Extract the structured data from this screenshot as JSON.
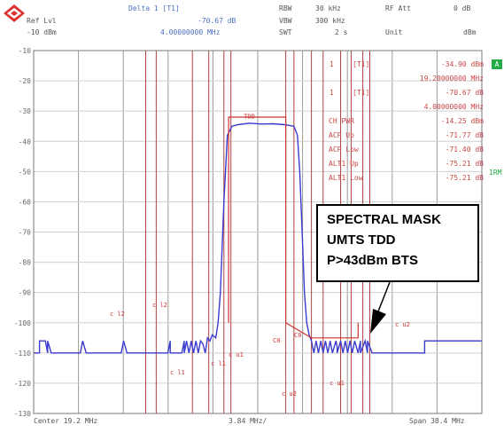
{
  "header": {
    "marker_label": "Delta 1 [T1]",
    "ref_label": "Ref Lvl",
    "ref_value": "-10 dBm",
    "marker_level": "-70.67 dB",
    "marker_freq": "4.00000000 MHz",
    "rbw_label": "RBW",
    "rbw_value": "30 kHz",
    "vbw_label": "VBW",
    "vbw_value": "300 kHz",
    "swt_label": "SWT",
    "swt_value": "2 s",
    "rfatt_label": "RF Att",
    "rfatt_value": "0 dB",
    "unit_label": "Unit",
    "unit_value": "dBm"
  },
  "footer": {
    "center": "Center 19.2 MHz",
    "div": "3.84 MHz/",
    "span": "Span 38.4 MHz"
  },
  "side": {
    "badge": "A",
    "trm": "1RM"
  },
  "marker_table": [
    {
      "marker": "1",
      "trace": "[T1]",
      "value": "-34.90 dBm"
    },
    {
      "marker": "",
      "trace": "",
      "value": "19.20000000 MHz"
    },
    {
      "marker": "1",
      "trace": "[T1]",
      "value": "-70.67 dB"
    },
    {
      "marker": "",
      "trace": "",
      "value": "4.00000000 MHz"
    },
    {
      "marker": "CH PWR",
      "trace": "",
      "value": "-14.25 dBm"
    },
    {
      "marker": "ACP Up",
      "trace": "",
      "value": "-71.77 dB"
    },
    {
      "marker": "ACP Low",
      "trace": "",
      "value": "-71.40 dB"
    },
    {
      "marker": "ALT1 Up",
      "trace": "",
      "value": "-75.21 dB"
    },
    {
      "marker": "ALT1 Low",
      "trace": "",
      "value": "-75.21 dB"
    }
  ],
  "callout": {
    "line1": "SPECTRAL MASK",
    "line2": "UMTS TDD",
    "line3": "P>43dBm BTS"
  },
  "chart_data": {
    "type": "line",
    "yticks": [
      "-10",
      "-20",
      "-30",
      "-40",
      "-50",
      "-60",
      "-70",
      "-80",
      "-90",
      "-100",
      "-110",
      "-120",
      "-130"
    ],
    "ylim": [
      -130,
      -10
    ],
    "xlim": [
      0,
      38.4
    ],
    "colors": {
      "trace": "#3a3ad0",
      "mask": "#cc3333",
      "grid": "#d8d8d8",
      "channel": "#b04040"
    },
    "channel_labels": [
      "c l2",
      "c l2",
      "c l1",
      "c l1",
      "c u1",
      "c u2",
      "c u1",
      "C0",
      "C0",
      "c u2"
    ],
    "trace_label": "TDD",
    "series": [
      {
        "name": "trace",
        "x": [
          0,
          0.3,
          0.5,
          0.5,
          1.0,
          1.2,
          1.2,
          1.5,
          4.0,
          4.2,
          4.2,
          4.5,
          7.5,
          7.7,
          7.7,
          8.0,
          11.5,
          11.7,
          11.7,
          12.0,
          12.7,
          12.9,
          12.9,
          13.1,
          13.3,
          13.5,
          13.7,
          13.9,
          14.1,
          14.3,
          14.5,
          14.7,
          14.9,
          15.1,
          15.3,
          15.6,
          15.8,
          16.0,
          16.3,
          16.6,
          17.0,
          17.5,
          18.5,
          19.5,
          20.5,
          21.5,
          22.3,
          22.6,
          22.8,
          23.0,
          23.2,
          23.4,
          23.6,
          23.8,
          24.0,
          24.2,
          24.4,
          24.6,
          24.8,
          25.0,
          25.2,
          25.4,
          25.6,
          25.9,
          26.0,
          26.0,
          26.3,
          26.5,
          26.7,
          26.9,
          27.1,
          27.3,
          27.5,
          27.8,
          28.0,
          28.0,
          28.4,
          28.6,
          28.6,
          29.0,
          33.5,
          33.5,
          33.7,
          38.4
        ],
        "y": [
          -110,
          -110,
          -110,
          -106,
          -106,
          -110,
          -106,
          -110,
          -110,
          -106,
          -106,
          -110,
          -110,
          -106,
          -106,
          -110,
          -110,
          -106,
          -110,
          -110,
          -110,
          -106,
          -110,
          -106,
          -110,
          -106,
          -110,
          -106,
          -110,
          -106,
          -107,
          -110,
          -105,
          -106,
          -104,
          -105,
          -100,
          -90,
          -60,
          -38,
          -35,
          -34.5,
          -34,
          -34.3,
          -34.2,
          -34.5,
          -35,
          -38,
          -50,
          -70,
          -90,
          -100,
          -104,
          -106,
          -110,
          -106,
          -110,
          -106,
          -110,
          -106,
          -110,
          -106,
          -110,
          -106,
          -108,
          -110,
          -106,
          -110,
          -106,
          -110,
          -106,
          -110,
          -106,
          -110,
          -106,
          -110,
          -106,
          -110,
          -106,
          -110,
          -110,
          -106,
          -106,
          -106
        ]
      },
      {
        "name": "mask",
        "x": [
          16.7,
          16.7,
          21.6,
          21.6,
          23.8,
          27.8,
          27.8
        ],
        "y": [
          -100,
          -32,
          -32,
          -100,
          -105,
          -105,
          -100
        ]
      }
    ],
    "channel_x": [
      9.6,
      10.5,
      13.6,
      15.0,
      16.3,
      16.9,
      21.6,
      22.3,
      23.8,
      24.8,
      26.3,
      27.2,
      28.2,
      28.8
    ]
  }
}
